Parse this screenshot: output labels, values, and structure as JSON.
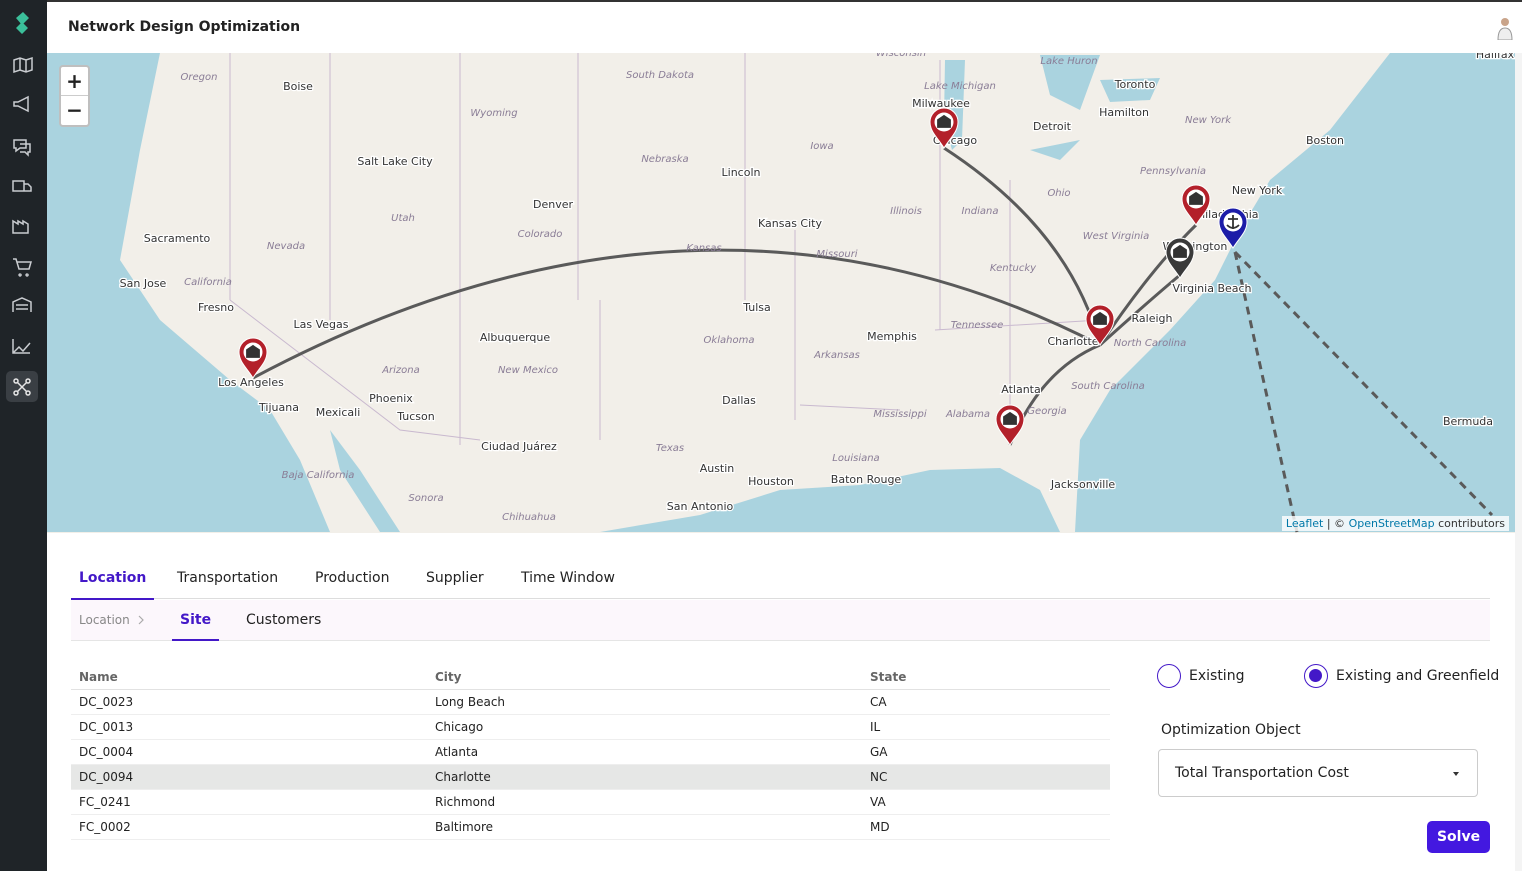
{
  "header": {
    "title": "Network Design Optimization"
  },
  "map": {
    "zoom_in": "+",
    "zoom_out": "−",
    "cities": [
      "Boise",
      "Salt Lake City",
      "Sacramento",
      "San Jose",
      "Fresno",
      "Las Vegas",
      "Los Angeles",
      "Tijuana",
      "Mexicali",
      "Phoenix",
      "Tucson",
      "Denver",
      "Albuquerque",
      "Ciudad Juárez",
      "Lincoln",
      "Kansas City",
      "Tulsa",
      "Dallas",
      "Austin",
      "Houston",
      "San Antonio",
      "Memphis",
      "Baton Rouge",
      "Milwaukee",
      "Chicago",
      "Detroit",
      "Toronto",
      "Hamilton",
      "Boston",
      "New York",
      "Philadelphia",
      "Washington",
      "Virginia Beach",
      "Raleigh",
      "Charlotte",
      "Atlanta",
      "Jacksonville",
      "Halifax",
      "Bermuda"
    ],
    "regions": [
      "Oregon",
      "Wyoming",
      "South Dakota",
      "Nebraska",
      "Iowa",
      "Illinois",
      "Indiana",
      "Ohio",
      "Pennsylvania",
      "New York",
      "Utah",
      "Nevada",
      "Colorado",
      "Kansas",
      "Missouri",
      "California",
      "Kentucky",
      "West Virginia",
      "Tennessee",
      "Oklahoma",
      "Arkansas",
      "North Carolina",
      "South Carolina",
      "Arizona",
      "New Mexico",
      "Mississippi",
      "Alabama",
      "Georgia",
      "Texas",
      "Louisiana",
      "Baja California",
      "Sonora",
      "Chihuahua",
      "Lake Michigan",
      "Lake Huron",
      "Wisconsin"
    ],
    "attribution": {
      "leaflet": "Leaflet",
      "separator": "| ©",
      "osm": "OpenStreetMap",
      "contributors": "contributors"
    }
  },
  "tabs": [
    "Location",
    "Transportation",
    "Production",
    "Supplier",
    "Time Window"
  ],
  "active_tab": 0,
  "subtabs": {
    "breadcrumb": "Location",
    "items": [
      "Site",
      "Customers"
    ],
    "active": 0
  },
  "table": {
    "columns": [
      "Name",
      "City",
      "State"
    ],
    "rows": [
      [
        "DC_0023",
        "Long Beach",
        "CA"
      ],
      [
        "DC_0013",
        "Chicago",
        "IL"
      ],
      [
        "DC_0004",
        "Atlanta",
        "GA"
      ],
      [
        "DC_0094",
        "Charlotte",
        "NC"
      ],
      [
        "FC_0241",
        "Richmond",
        "VA"
      ],
      [
        "FC_0002",
        "Baltimore",
        "MD"
      ]
    ],
    "highlighted_row": 3
  },
  "options": {
    "radios": [
      "Existing",
      "Existing and Greenfield"
    ],
    "selected": 1,
    "field_label": "Optimization Object",
    "select_value": "Total Transportation Cost",
    "button": "Solve"
  }
}
